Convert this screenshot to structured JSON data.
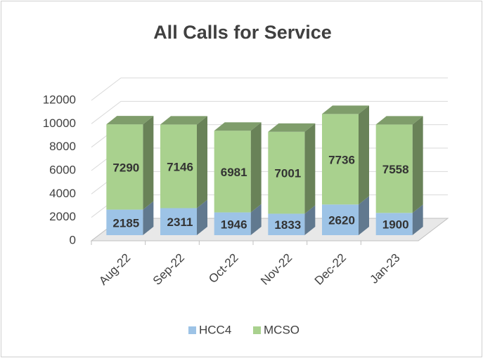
{
  "chart_data": {
    "type": "bar3d_stacked",
    "title": "All Calls for Service",
    "categories": [
      "Aug-22",
      "Sep-22",
      "Oct-22",
      "Nov-22",
      "Dec-22",
      "Jan-23"
    ],
    "series": [
      {
        "name": "HCC4",
        "color": "#9dc3e6",
        "values": [
          2185,
          2311,
          1946,
          1833,
          2620,
          1900
        ]
      },
      {
        "name": "MCSO",
        "color": "#a9d18e",
        "values": [
          7290,
          7146,
          6981,
          7001,
          7736,
          7558
        ]
      }
    ],
    "ylim": [
      0,
      12000
    ],
    "yticks": [
      0,
      2000,
      4000,
      6000,
      8000,
      10000,
      12000
    ],
    "grid": true,
    "legend": "bottom"
  }
}
